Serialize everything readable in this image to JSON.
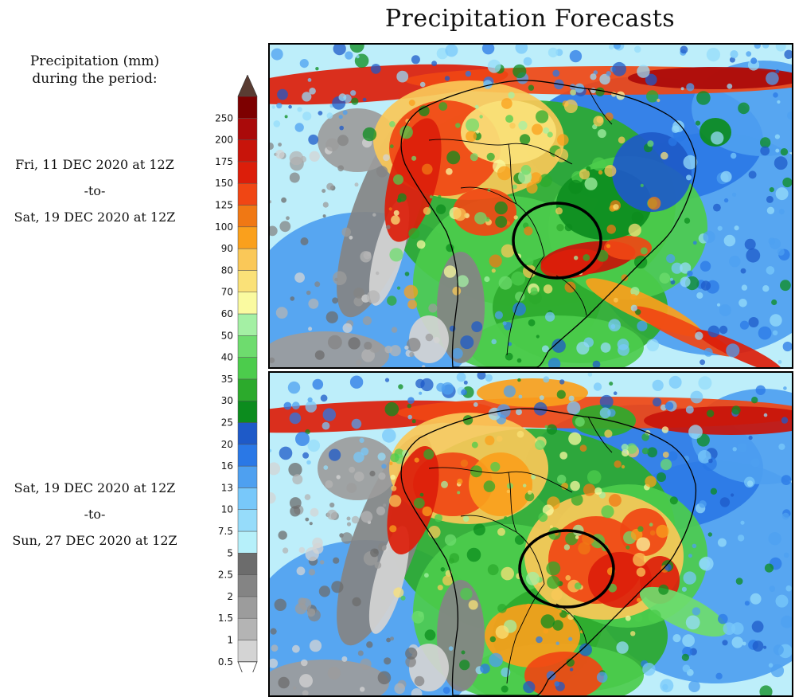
{
  "header": {
    "title": "Precipitation Forecasts"
  },
  "legend": {
    "heading_line1": "Precipitation (mm)",
    "heading_line2": "during the period:",
    "levels": [
      "0.5",
      "1",
      "1.5",
      "2",
      "2.5",
      "5",
      "7.5",
      "10",
      "13",
      "16",
      "20",
      "25",
      "30",
      "35",
      "40",
      "50",
      "60",
      "70",
      "80",
      "90",
      "100",
      "125",
      "150",
      "175",
      "200",
      "250"
    ],
    "colors": [
      "#d4d4d4",
      "#b4b4b4",
      "#9c9c9c",
      "#848484",
      "#6c6c6c",
      "#b6f0fa",
      "#96dcfa",
      "#78c8fa",
      "#4ea0f0",
      "#2a78e6",
      "#1e5ac8",
      "#0c8c1e",
      "#2caa2c",
      "#4ccc4c",
      "#6edc6e",
      "#a4f0a4",
      "#fafaa0",
      "#fae178",
      "#fac858",
      "#faa01c",
      "#f07814",
      "#f04614",
      "#dc1e0a",
      "#c8140a",
      "#aa0a0a",
      "#7d0000"
    ],
    "top_arrow_color": "#5a3c32"
  },
  "periods": [
    {
      "start": "Fri, 11 DEC 2020 at 12Z",
      "sep": "-to-",
      "end": "Sat, 19 DEC 2020 at 12Z"
    },
    {
      "start": "Sat, 19 DEC 2020 at 12Z",
      "sep": "-to-",
      "end": "Sun, 27 DEC 2020 at 12Z"
    }
  ],
  "maps": {
    "ocean_color": "#bdeefa",
    "outline_color": "#000000",
    "highlight_ring_color": "#000000"
  }
}
